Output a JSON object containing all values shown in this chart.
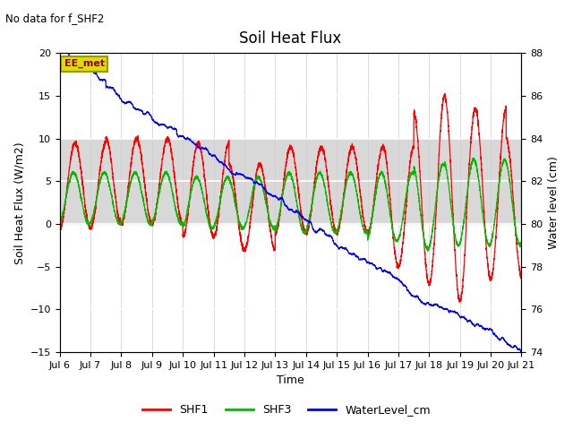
{
  "title": "Soil Heat Flux",
  "note": "No data for f_SHF2",
  "ylabel_left": "Soil Heat Flux (W/m2)",
  "ylabel_right": "Water level (cm)",
  "xlabel": "Time",
  "ylim_left": [
    -15,
    20
  ],
  "ylim_right": [
    74,
    88
  ],
  "x_start_day": 6,
  "x_end_day": 21,
  "x_ticks": [
    6,
    7,
    8,
    9,
    10,
    11,
    12,
    13,
    14,
    15,
    16,
    17,
    18,
    19,
    20,
    21
  ],
  "x_tick_labels": [
    "Jul 6",
    "Jul 7",
    "Jul 8",
    "Jul 9",
    "Jul 10",
    "Jul 11",
    "Jul 12",
    "Jul 13",
    "Jul 14",
    "Jul 15",
    "Jul 16",
    "Jul 17",
    "Jul 18",
    "Jul 19",
    "Jul 20",
    "Jul 21"
  ],
  "yticks_left": [
    -15,
    -10,
    -5,
    0,
    5,
    10,
    15,
    20
  ],
  "yticks_right": [
    74,
    76,
    78,
    80,
    82,
    84,
    86,
    88
  ],
  "shf1_color": "#ff0000",
  "shf3_color": "#00bb00",
  "water_color": "#0000ff",
  "legend_labels": [
    "SHF1",
    "SHF3",
    "WaterLevel_cm"
  ],
  "ee_met_box_facecolor": "#dddd00",
  "ee_met_box_edgecolor": "#999900",
  "ee_met_text_color": "#880000",
  "background_color": "#ffffff",
  "band_color": "#d8d8d8",
  "band_ymin": 0,
  "band_ymax": 10,
  "figsize": [
    6.4,
    4.8
  ],
  "dpi": 100
}
